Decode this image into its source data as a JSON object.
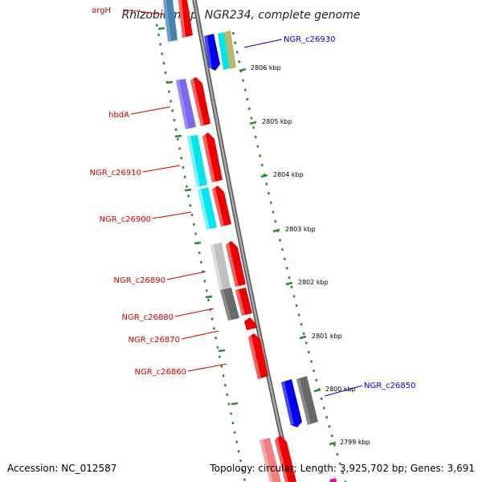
{
  "title": "Rhizobium sp. NGR234, complete genome",
  "footer": {
    "accession": "Accession: NC_012587",
    "topology": "Topology: circular; Length: 3,925,702 bp; Genes: 3,691"
  },
  "colors": {
    "backbone": "#808080",
    "dashed_outline": "#2e8b2e",
    "left_labels": "#cc0000",
    "right_labels": "#0000cc",
    "red_gene": "#ee0000",
    "light_red_gene": "#f08080",
    "cyan_gene": "#00e5ee",
    "blue_gene": "#0000ee",
    "purple_gene": "#7b68ee",
    "steelblue_gene": "#4682b4",
    "gray_gene": "#696969",
    "lightgray_gene": "#c0c0c0",
    "khaki_gene": "#bdb76b",
    "magenta_gene": "#ee00aa"
  },
  "scale": {
    "unit": "kbp",
    "ticks": [
      "2806 kbp",
      "2805 kbp",
      "2804 kbp",
      "2803 kbp",
      "2802 kbp",
      "2801 kbp",
      "2800 kbp",
      "2799 kbp"
    ]
  },
  "labels_left": [
    {
      "id": "argH",
      "text": "argH"
    },
    {
      "id": "hbdA",
      "text": "hbdA"
    },
    {
      "id": "NGR_c26910",
      "text": "NGR_c26910"
    },
    {
      "id": "NGR_c26900",
      "text": "NGR_c26900"
    },
    {
      "id": "NGR_c26890",
      "text": "NGR_c26890"
    },
    {
      "id": "NGR_c26880",
      "text": "NGR_c26880"
    },
    {
      "id": "NGR_c26870",
      "text": "NGR_c26870"
    },
    {
      "id": "NGR_c26860",
      "text": "NGR_c26860"
    }
  ],
  "labels_right": [
    {
      "id": "NGR_c26930",
      "text": "NGR_c26930"
    },
    {
      "id": "NGR_c26850",
      "text": "NGR_c26850"
    }
  ]
}
